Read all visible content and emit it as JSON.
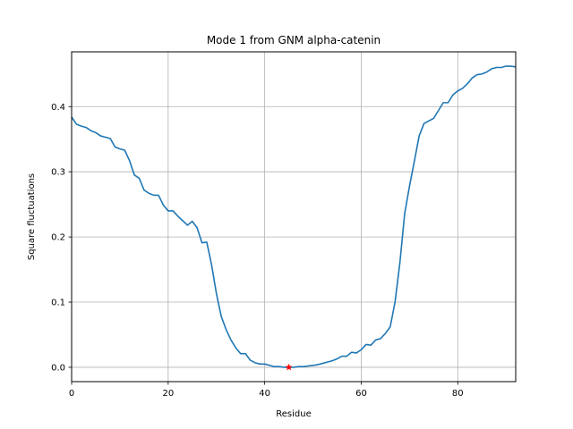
{
  "chart_data": {
    "type": "line",
    "title": "Mode 1 from GNM alpha-catenin",
    "xlabel": "Residue",
    "ylabel": "Square fluctuations",
    "xlim": [
      0,
      92
    ],
    "ylim": [
      -0.022,
      0.484
    ],
    "xticks": [
      0,
      20,
      40,
      60,
      80
    ],
    "yticks": [
      0.0,
      0.1,
      0.2,
      0.3,
      0.4
    ],
    "xtick_labels": [
      "0",
      "20",
      "40",
      "60",
      "80"
    ],
    "ytick_labels": [
      "0.0",
      "0.1",
      "0.2",
      "0.3",
      "0.4"
    ],
    "grid": true,
    "line_color": "#1f77b4",
    "marker_color": "#ff0000",
    "series": [
      {
        "values": [
          0.384,
          0.373,
          0.37,
          0.368,
          0.363,
          0.36,
          0.355,
          0.353,
          0.351,
          0.338,
          0.335,
          0.333,
          0.317,
          0.295,
          0.29,
          0.272,
          0.267,
          0.264,
          0.264,
          0.249,
          0.24,
          0.24,
          0.232,
          0.225,
          0.218,
          0.224,
          0.214,
          0.191,
          0.192,
          0.157,
          0.113,
          0.078,
          0.058,
          0.042,
          0.03,
          0.021,
          0.021,
          0.011,
          0.007,
          0.005,
          0.005,
          0.003,
          0.001,
          0.001,
          0.0,
          0.0,
          0.0,
          0.001,
          0.001,
          0.002,
          0.003,
          0.004,
          0.006,
          0.008,
          0.01,
          0.013,
          0.017,
          0.017,
          0.023,
          0.022,
          0.027,
          0.035,
          0.034,
          0.042,
          0.044,
          0.052,
          0.062,
          0.1,
          0.16,
          0.236,
          0.278,
          0.316,
          0.355,
          0.374,
          0.378,
          0.382,
          0.394,
          0.406,
          0.406,
          0.418,
          0.424,
          0.428,
          0.435,
          0.444,
          0.449,
          0.45,
          0.453,
          0.458,
          0.46,
          0.46,
          0.462,
          0.462,
          0.461
        ]
      }
    ],
    "highlight_point": {
      "x": 45,
      "y": 0.0
    }
  }
}
